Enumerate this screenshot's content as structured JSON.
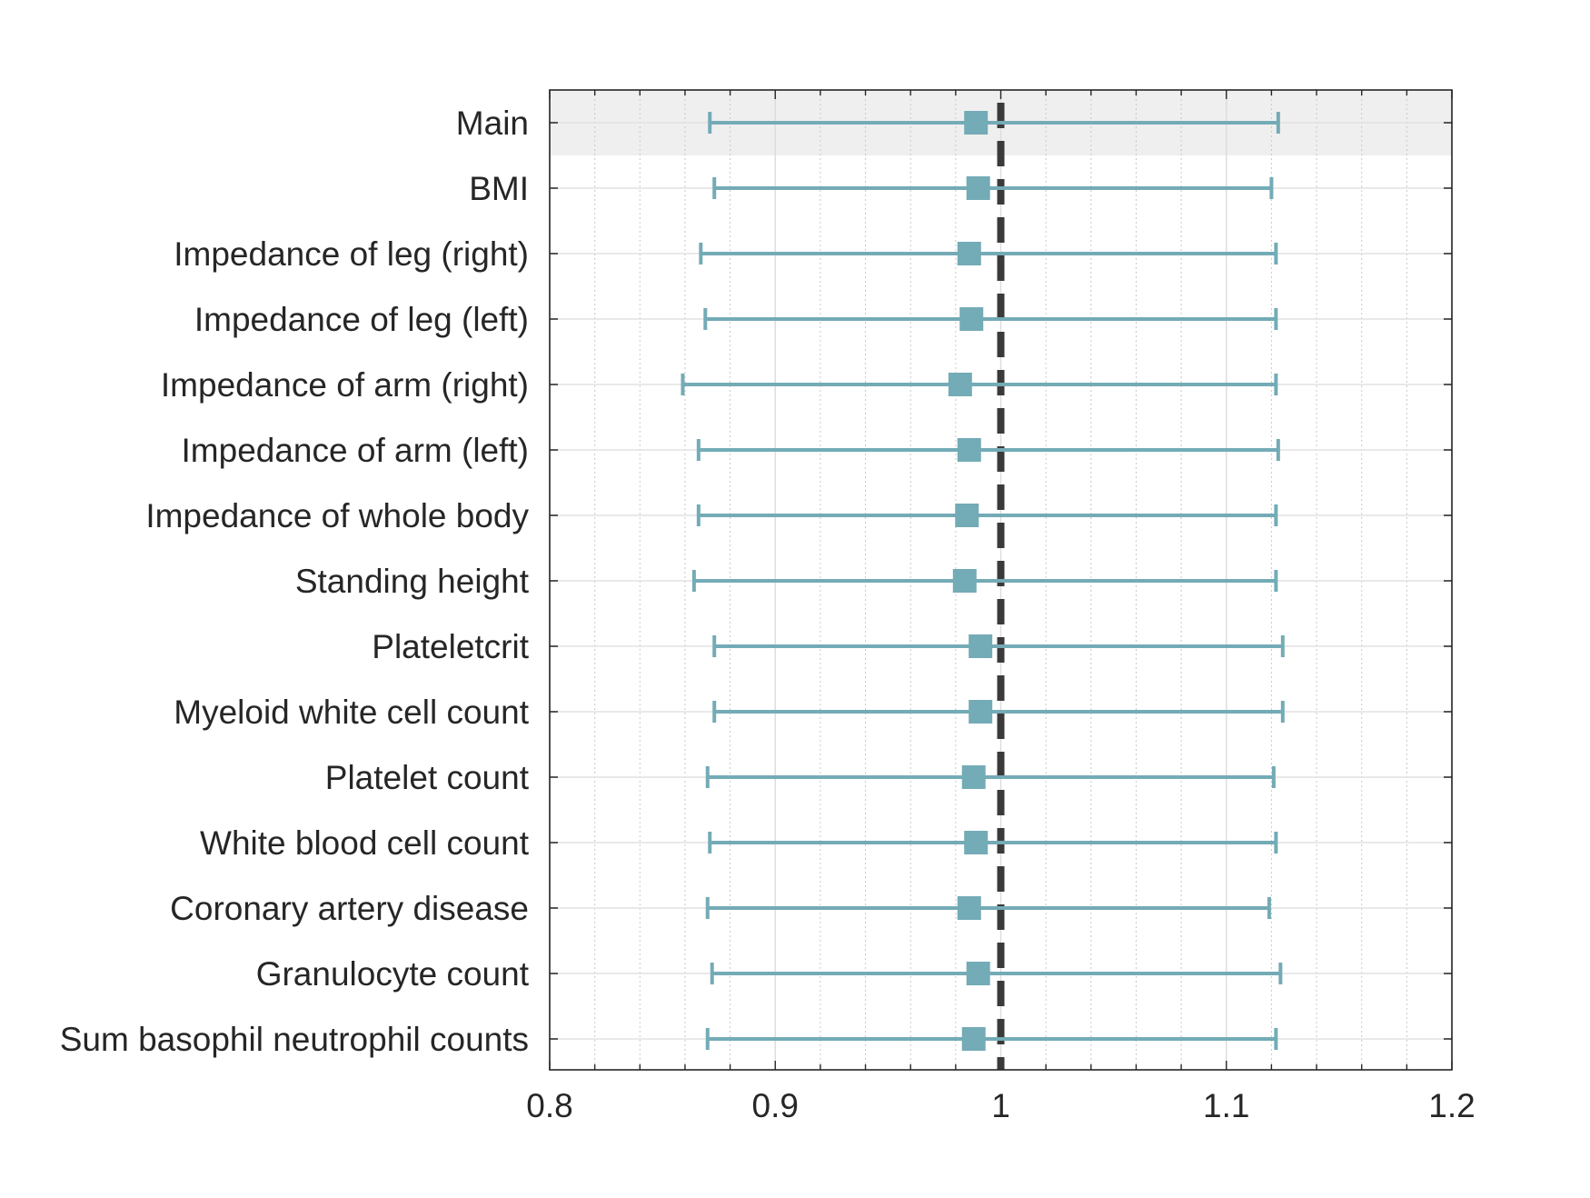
{
  "chart_data": {
    "type": "forest",
    "title": "",
    "xlabel": "",
    "ylabel": "",
    "xlim": [
      0.8,
      1.2
    ],
    "xticks": [
      "0.8",
      "0.9",
      "1",
      "1.1",
      "1.2"
    ],
    "grid": true,
    "reference_line": 1,
    "highlighted_row": "Main",
    "colors": {
      "marker": "#73abb6",
      "reference": "#3a3a3a",
      "highlight_band": "#efefef"
    },
    "rows": [
      {
        "label": "Main",
        "estimate": 0.989,
        "lower": 0.871,
        "upper": 1.123
      },
      {
        "label": "BMI",
        "estimate": 0.99,
        "lower": 0.873,
        "upper": 1.12
      },
      {
        "label": "Impedance of leg (right)",
        "estimate": 0.986,
        "lower": 0.867,
        "upper": 1.122
      },
      {
        "label": "Impedance of leg (left)",
        "estimate": 0.987,
        "lower": 0.869,
        "upper": 1.122
      },
      {
        "label": "Impedance of arm (right)",
        "estimate": 0.982,
        "lower": 0.859,
        "upper": 1.122
      },
      {
        "label": "Impedance of arm (left)",
        "estimate": 0.986,
        "lower": 0.866,
        "upper": 1.123
      },
      {
        "label": "Impedance of whole body",
        "estimate": 0.985,
        "lower": 0.866,
        "upper": 1.122
      },
      {
        "label": "Standing height",
        "estimate": 0.984,
        "lower": 0.864,
        "upper": 1.122
      },
      {
        "label": "Plateletcrit",
        "estimate": 0.991,
        "lower": 0.873,
        "upper": 1.125
      },
      {
        "label": "Myeloid white cell count",
        "estimate": 0.991,
        "lower": 0.873,
        "upper": 1.125
      },
      {
        "label": "Platelet count",
        "estimate": 0.988,
        "lower": 0.87,
        "upper": 1.121
      },
      {
        "label": "White blood cell count",
        "estimate": 0.989,
        "lower": 0.871,
        "upper": 1.122
      },
      {
        "label": "Coronary artery disease",
        "estimate": 0.986,
        "lower": 0.87,
        "upper": 1.119
      },
      {
        "label": "Granulocyte count",
        "estimate": 0.99,
        "lower": 0.872,
        "upper": 1.124
      },
      {
        "label": "Sum basophil neutrophil counts",
        "estimate": 0.988,
        "lower": 0.87,
        "upper": 1.122
      }
    ]
  }
}
